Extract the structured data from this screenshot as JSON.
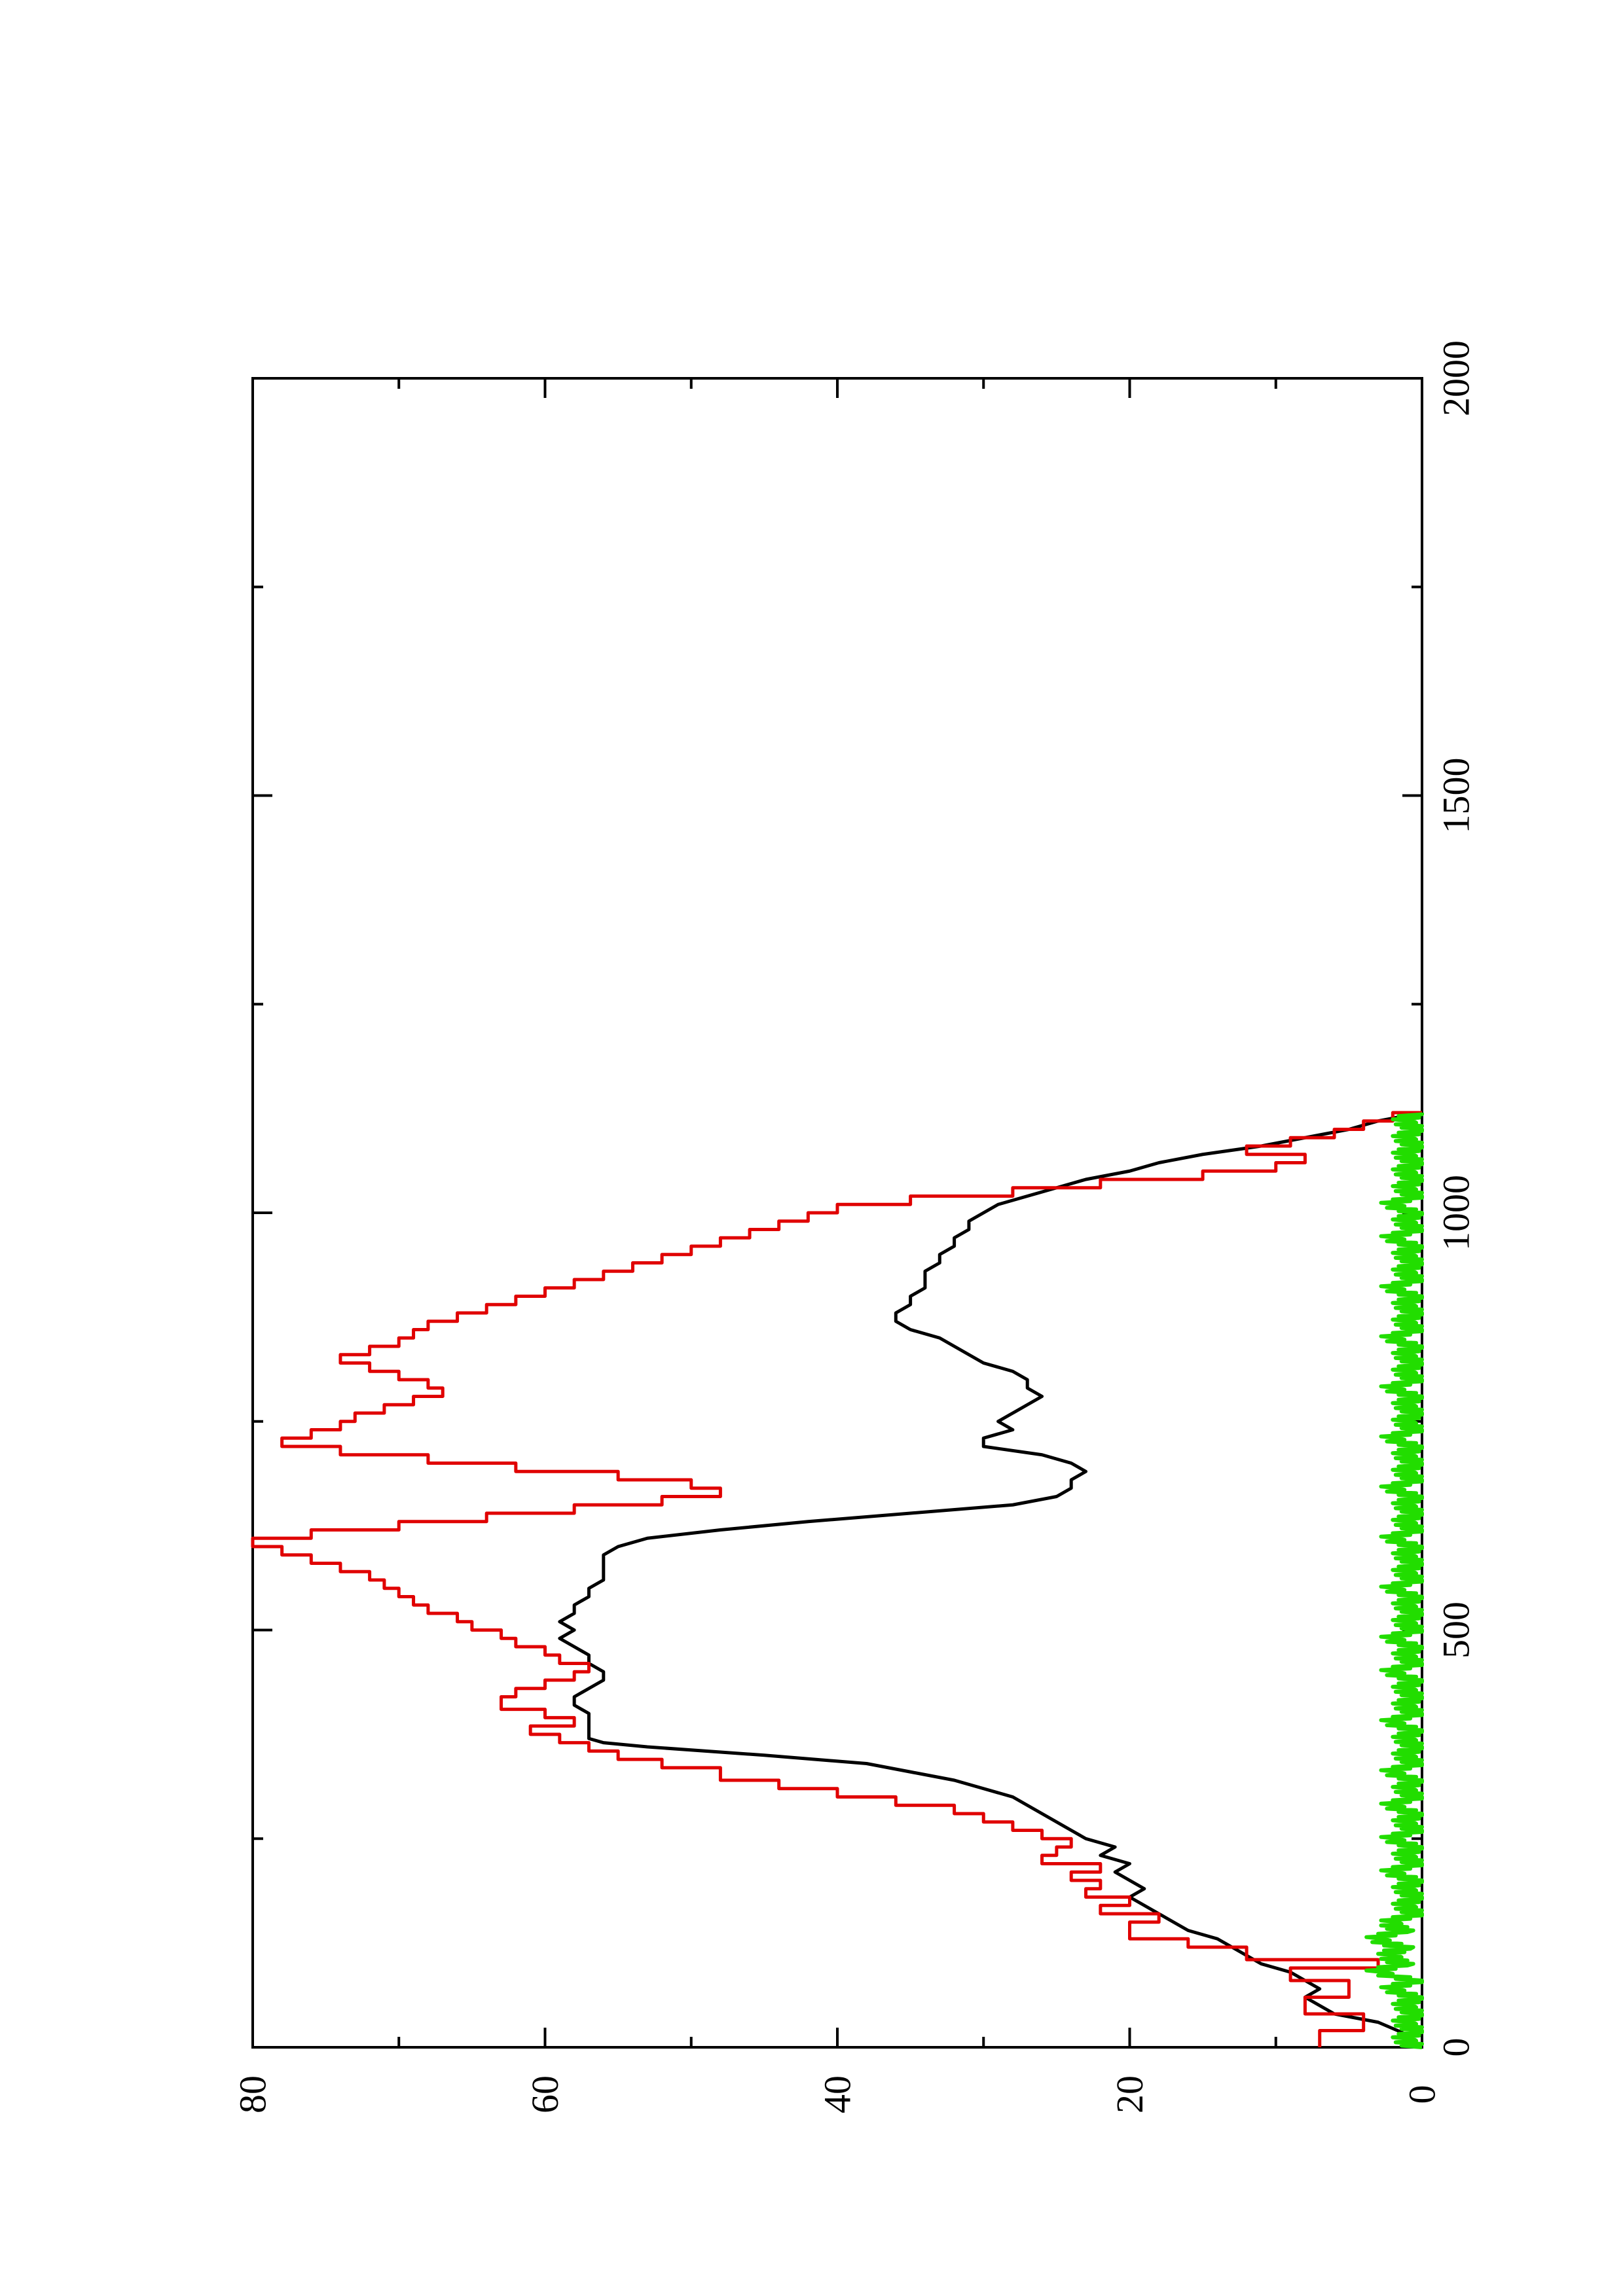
{
  "chart_data": {
    "type": "line",
    "title": "",
    "xlabel": "",
    "ylabel": "",
    "xlim": [
      0,
      2000
    ],
    "ylim": [
      0,
      80
    ],
    "x_ticks": [
      "0",
      "500",
      "1000",
      "1500",
      "2000"
    ],
    "y_ticks": [
      "0",
      "20",
      "40",
      "60",
      "80"
    ],
    "grid": false,
    "legend": "none",
    "orientation": "rotated 90° counter-clockwise",
    "series": [
      {
        "color": "#000000",
        "style": "line",
        "points": [
          [
            0,
            0
          ],
          [
            15,
            1
          ],
          [
            30,
            3
          ],
          [
            40,
            6
          ],
          [
            50,
            7
          ],
          [
            60,
            8
          ],
          [
            70,
            7
          ],
          [
            80,
            8
          ],
          [
            90,
            9
          ],
          [
            100,
            11
          ],
          [
            110,
            12
          ],
          [
            120,
            13
          ],
          [
            130,
            14
          ],
          [
            140,
            16
          ],
          [
            150,
            17
          ],
          [
            160,
            18
          ],
          [
            170,
            19
          ],
          [
            180,
            20
          ],
          [
            190,
            19
          ],
          [
            200,
            20
          ],
          [
            210,
            21
          ],
          [
            220,
            20
          ],
          [
            230,
            22
          ],
          [
            240,
            21
          ],
          [
            250,
            23
          ],
          [
            260,
            24
          ],
          [
            270,
            25
          ],
          [
            280,
            26
          ],
          [
            290,
            27
          ],
          [
            300,
            28
          ],
          [
            310,
            30
          ],
          [
            320,
            32
          ],
          [
            330,
            35
          ],
          [
            340,
            38
          ],
          [
            350,
            45
          ],
          [
            360,
            53
          ],
          [
            365,
            56
          ],
          [
            370,
            57
          ],
          [
            380,
            57
          ],
          [
            390,
            57
          ],
          [
            400,
            57
          ],
          [
            410,
            58
          ],
          [
            420,
            58
          ],
          [
            430,
            57
          ],
          [
            440,
            56
          ],
          [
            450,
            56
          ],
          [
            460,
            57
          ],
          [
            470,
            57
          ],
          [
            480,
            58
          ],
          [
            490,
            59
          ],
          [
            500,
            58
          ],
          [
            510,
            59
          ],
          [
            520,
            58
          ],
          [
            530,
            58
          ],
          [
            540,
            57
          ],
          [
            550,
            57
          ],
          [
            560,
            56
          ],
          [
            570,
            56
          ],
          [
            580,
            56
          ],
          [
            590,
            56
          ],
          [
            600,
            55
          ],
          [
            610,
            53
          ],
          [
            620,
            48
          ],
          [
            630,
            42
          ],
          [
            640,
            35
          ],
          [
            650,
            28
          ],
          [
            660,
            25
          ],
          [
            670,
            24
          ],
          [
            680,
            24
          ],
          [
            690,
            23
          ],
          [
            700,
            24
          ],
          [
            710,
            26
          ],
          [
            720,
            30
          ],
          [
            730,
            30
          ],
          [
            740,
            28
          ],
          [
            750,
            29
          ],
          [
            760,
            28
          ],
          [
            770,
            27
          ],
          [
            780,
            26
          ],
          [
            790,
            27
          ],
          [
            800,
            27
          ],
          [
            810,
            28
          ],
          [
            820,
            30
          ],
          [
            830,
            31
          ],
          [
            840,
            32
          ],
          [
            850,
            33
          ],
          [
            860,
            35
          ],
          [
            870,
            36
          ],
          [
            880,
            36
          ],
          [
            890,
            35
          ],
          [
            900,
            35
          ],
          [
            910,
            34
          ],
          [
            920,
            34
          ],
          [
            930,
            34
          ],
          [
            940,
            33
          ],
          [
            950,
            33
          ],
          [
            960,
            32
          ],
          [
            970,
            32
          ],
          [
            980,
            31
          ],
          [
            990,
            31
          ],
          [
            1000,
            30
          ],
          [
            1010,
            29
          ],
          [
            1020,
            27
          ],
          [
            1030,
            25
          ],
          [
            1040,
            23
          ],
          [
            1050,
            20
          ],
          [
            1060,
            18
          ],
          [
            1070,
            15
          ],
          [
            1080,
            11
          ],
          [
            1090,
            8
          ],
          [
            1100,
            5
          ],
          [
            1110,
            3
          ],
          [
            1120,
            0
          ]
        ]
      },
      {
        "color": "#e00000",
        "style": "step",
        "points": [
          [
            0,
            7
          ],
          [
            20,
            4
          ],
          [
            40,
            8
          ],
          [
            60,
            5
          ],
          [
            80,
            9
          ],
          [
            95,
            3
          ],
          [
            105,
            12
          ],
          [
            120,
            16
          ],
          [
            130,
            20
          ],
          [
            150,
            18
          ],
          [
            160,
            22
          ],
          [
            170,
            20
          ],
          [
            180,
            23
          ],
          [
            190,
            22
          ],
          [
            200,
            24
          ],
          [
            210,
            22
          ],
          [
            220,
            26
          ],
          [
            230,
            25
          ],
          [
            240,
            24
          ],
          [
            250,
            26
          ],
          [
            260,
            28
          ],
          [
            270,
            30
          ],
          [
            280,
            32
          ],
          [
            290,
            36
          ],
          [
            300,
            40
          ],
          [
            310,
            44
          ],
          [
            320,
            48
          ],
          [
            335,
            52
          ],
          [
            345,
            55
          ],
          [
            355,
            57
          ],
          [
            365,
            59
          ],
          [
            375,
            61
          ],
          [
            385,
            58
          ],
          [
            395,
            60
          ],
          [
            405,
            63
          ],
          [
            420,
            62
          ],
          [
            430,
            60
          ],
          [
            440,
            58
          ],
          [
            450,
            57
          ],
          [
            460,
            59
          ],
          [
            470,
            60
          ],
          [
            480,
            62
          ],
          [
            490,
            63
          ],
          [
            500,
            65
          ],
          [
            510,
            66
          ],
          [
            520,
            68
          ],
          [
            530,
            69
          ],
          [
            540,
            70
          ],
          [
            550,
            71
          ],
          [
            560,
            72
          ],
          [
            570,
            74
          ],
          [
            580,
            76
          ],
          [
            590,
            78
          ],
          [
            600,
            80
          ],
          [
            610,
            76
          ],
          [
            620,
            70
          ],
          [
            630,
            64
          ],
          [
            640,
            58
          ],
          [
            650,
            52
          ],
          [
            660,
            48
          ],
          [
            670,
            50
          ],
          [
            680,
            55
          ],
          [
            690,
            62
          ],
          [
            700,
            68
          ],
          [
            710,
            74
          ],
          [
            720,
            78
          ],
          [
            730,
            76
          ],
          [
            740,
            74
          ],
          [
            750,
            73
          ],
          [
            760,
            71
          ],
          [
            770,
            69
          ],
          [
            780,
            67
          ],
          [
            790,
            68
          ],
          [
            800,
            70
          ],
          [
            810,
            72
          ],
          [
            820,
            74
          ],
          [
            830,
            72
          ],
          [
            840,
            70
          ],
          [
            850,
            69
          ],
          [
            860,
            68
          ],
          [
            870,
            66
          ],
          [
            880,
            64
          ],
          [
            890,
            62
          ],
          [
            900,
            60
          ],
          [
            910,
            58
          ],
          [
            920,
            56
          ],
          [
            930,
            54
          ],
          [
            940,
            52
          ],
          [
            950,
            50
          ],
          [
            960,
            48
          ],
          [
            970,
            46
          ],
          [
            980,
            44
          ],
          [
            990,
            42
          ],
          [
            1000,
            40
          ],
          [
            1010,
            35
          ],
          [
            1020,
            28
          ],
          [
            1030,
            22
          ],
          [
            1040,
            15
          ],
          [
            1050,
            10
          ],
          [
            1060,
            8
          ],
          [
            1070,
            12
          ],
          [
            1080,
            9
          ],
          [
            1090,
            6
          ],
          [
            1100,
            4
          ],
          [
            1110,
            2
          ],
          [
            1120,
            0
          ]
        ]
      },
      {
        "color": "#22dd00",
        "style": "noise",
        "points": [
          [
            0,
            0
          ],
          [
            10,
            1
          ],
          [
            20,
            0
          ],
          [
            30,
            1
          ],
          [
            40,
            0
          ],
          [
            50,
            1
          ],
          [
            60,
            0
          ],
          [
            70,
            2
          ],
          [
            80,
            0
          ],
          [
            90,
            3
          ],
          [
            100,
            1
          ],
          [
            110,
            2
          ],
          [
            120,
            1
          ],
          [
            130,
            3
          ],
          [
            140,
            1
          ],
          [
            150,
            2
          ],
          [
            160,
            0
          ],
          [
            170,
            1
          ],
          [
            180,
            0
          ],
          [
            190,
            1
          ],
          [
            200,
            0
          ],
          [
            210,
            2
          ],
          [
            220,
            0
          ],
          [
            230,
            1
          ],
          [
            240,
            0
          ],
          [
            250,
            2
          ],
          [
            260,
            0
          ],
          [
            270,
            1
          ],
          [
            280,
            0
          ],
          [
            290,
            2
          ],
          [
            300,
            0
          ],
          [
            310,
            1
          ],
          [
            320,
            0
          ],
          [
            330,
            2
          ],
          [
            340,
            0
          ],
          [
            350,
            1
          ],
          [
            360,
            0
          ],
          [
            370,
            1
          ],
          [
            380,
            0
          ],
          [
            390,
            2
          ],
          [
            400,
            0
          ],
          [
            410,
            1
          ],
          [
            420,
            0
          ],
          [
            430,
            1
          ],
          [
            440,
            0
          ],
          [
            450,
            2
          ],
          [
            460,
            0
          ],
          [
            470,
            1
          ],
          [
            480,
            0
          ],
          [
            490,
            2
          ],
          [
            500,
            0
          ],
          [
            510,
            1
          ],
          [
            520,
            0
          ],
          [
            530,
            1
          ],
          [
            540,
            0
          ],
          [
            550,
            2
          ],
          [
            560,
            0
          ],
          [
            570,
            1
          ],
          [
            580,
            0
          ],
          [
            590,
            1
          ],
          [
            600,
            0
          ],
          [
            610,
            2
          ],
          [
            620,
            0
          ],
          [
            630,
            1
          ],
          [
            640,
            0
          ],
          [
            650,
            1
          ],
          [
            660,
            0
          ],
          [
            670,
            2
          ],
          [
            680,
            0
          ],
          [
            690,
            1
          ],
          [
            700,
            0
          ],
          [
            710,
            1
          ],
          [
            720,
            0
          ],
          [
            730,
            2
          ],
          [
            740,
            0
          ],
          [
            750,
            1
          ],
          [
            760,
            0
          ],
          [
            770,
            1
          ],
          [
            780,
            0
          ],
          [
            790,
            2
          ],
          [
            800,
            0
          ],
          [
            810,
            1
          ],
          [
            820,
            0
          ],
          [
            830,
            1
          ],
          [
            840,
            0
          ],
          [
            850,
            2
          ],
          [
            860,
            0
          ],
          [
            870,
            1
          ],
          [
            880,
            0
          ],
          [
            890,
            1
          ],
          [
            900,
            0
          ],
          [
            910,
            2
          ],
          [
            920,
            0
          ],
          [
            930,
            1
          ],
          [
            940,
            0
          ],
          [
            950,
            1
          ],
          [
            960,
            0
          ],
          [
            970,
            2
          ],
          [
            980,
            0
          ],
          [
            990,
            1
          ],
          [
            1000,
            0
          ],
          [
            1010,
            2
          ],
          [
            1020,
            0
          ],
          [
            1030,
            1
          ],
          [
            1040,
            0
          ],
          [
            1050,
            1
          ],
          [
            1060,
            0
          ],
          [
            1070,
            1
          ],
          [
            1080,
            0
          ],
          [
            1090,
            1
          ],
          [
            1100,
            0
          ],
          [
            1110,
            1
          ],
          [
            1120,
            0
          ]
        ]
      }
    ]
  }
}
